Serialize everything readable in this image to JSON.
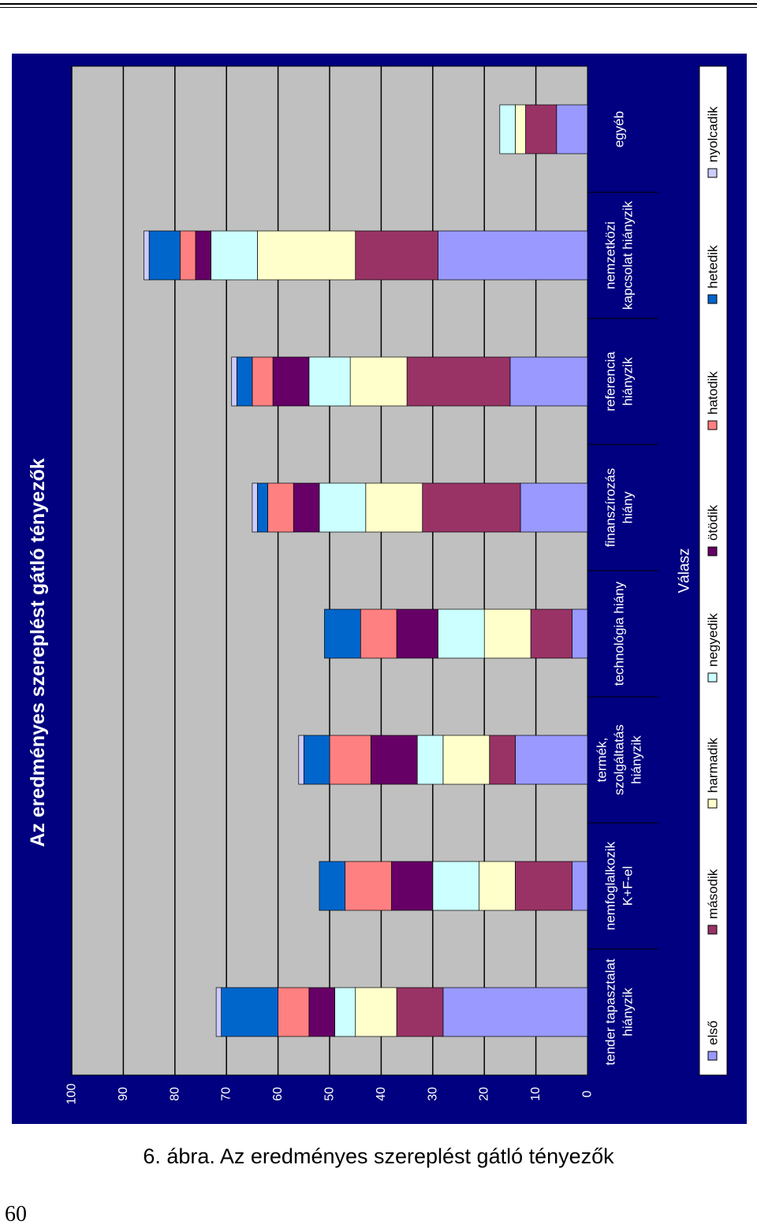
{
  "caption": "6. ábra. Az eredményes szereplést gátló tényezők",
  "page_number": "60",
  "colors": {
    "background": "#000080",
    "plot": "#c0c0c0",
    "gridline": "#000000",
    "legend_bg": "#ffffff",
    "text": "#ffffff"
  },
  "chart_data": {
    "type": "bar",
    "stacked": true,
    "orientation": "vertical, page rotated 90°",
    "title": "Az eredményes szereplést gátló tényezők",
    "xlabel": "Válasz",
    "ylabel": "",
    "ylim": [
      0,
      100
    ],
    "yticks": [
      "0",
      "10",
      "20",
      "30",
      "40",
      "50",
      "60",
      "70",
      "80",
      "90",
      "100"
    ],
    "grid": true,
    "legend_position": "bottom",
    "categories": [
      [
        "tender tapasztalat",
        "hiányzik"
      ],
      [
        "nemfoglalkozik",
        "K+F-el"
      ],
      [
        "termék,",
        "szolgáltatás",
        "hiányzik"
      ],
      [
        "technológia hiány"
      ],
      [
        "finanszírozás",
        "hiány"
      ],
      [
        "referencia",
        "hiányzik"
      ],
      [
        "nemzetközi",
        "kapcsolat hiányzik"
      ],
      [
        "egyéb"
      ]
    ],
    "series": [
      {
        "name": "első",
        "color": "#9999ff",
        "values": [
          28,
          3,
          14,
          3,
          13,
          15,
          29,
          6
        ]
      },
      {
        "name": "második",
        "color": "#993366",
        "values": [
          9,
          11,
          5,
          8,
          19,
          20,
          16,
          6
        ]
      },
      {
        "name": "harmadik",
        "color": "#ffffcc",
        "values": [
          8,
          7,
          9,
          9,
          11,
          11,
          19,
          2
        ]
      },
      {
        "name": "negyedik",
        "color": "#ccffff",
        "values": [
          4,
          9,
          5,
          9,
          9,
          8,
          9,
          3
        ]
      },
      {
        "name": "ötödik",
        "color": "#660066",
        "values": [
          5,
          8,
          9,
          8,
          5,
          7,
          3,
          0
        ]
      },
      {
        "name": "hatodik",
        "color": "#ff8080",
        "values": [
          6,
          9,
          8,
          7,
          5,
          4,
          3,
          0
        ]
      },
      {
        "name": "hetedik",
        "color": "#0066cc",
        "values": [
          11,
          5,
          5,
          7,
          2,
          3,
          6,
          0
        ]
      },
      {
        "name": "nyolcadik",
        "color": "#ccccff",
        "values": [
          1,
          0,
          1,
          0,
          1,
          1,
          1,
          0
        ]
      }
    ]
  }
}
